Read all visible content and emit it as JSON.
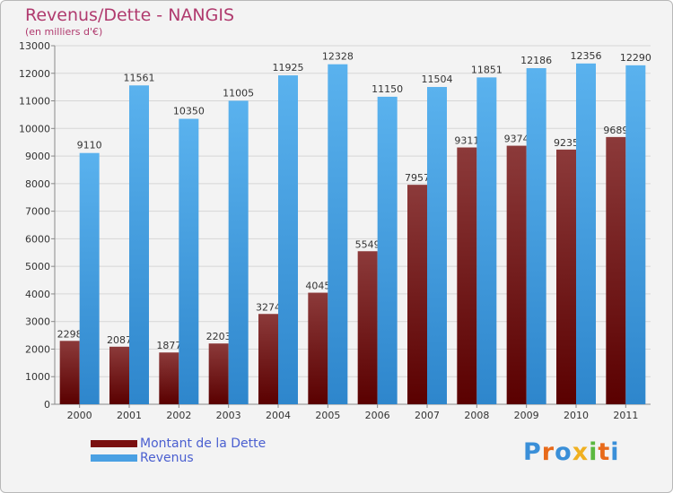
{
  "header": {
    "title": "Revenus/Dette - NANGIS",
    "subtitle": "(en milliers d'€)"
  },
  "legend": {
    "items": [
      {
        "label": "Montant de la Dette",
        "color": "#7a1010"
      },
      {
        "label": "Revenus",
        "color": "#4aa0e3"
      }
    ]
  },
  "logo": {
    "text": "Proxiti"
  },
  "colors": {
    "debt_top": "#8c3a3a",
    "debt_bottom": "#5a0000",
    "revenue_top": "#5ab2ee",
    "revenue_bottom": "#2e86cc",
    "title": "#b03a6e"
  },
  "chart_data": {
    "type": "bar",
    "categories": [
      "2000",
      "2001",
      "2002",
      "2003",
      "2004",
      "2005",
      "2006",
      "2007",
      "2008",
      "2009",
      "2010",
      "2011"
    ],
    "series": [
      {
        "name": "Montant de la Dette",
        "values": [
          2298,
          2087,
          1877,
          2203,
          3274,
          4045,
          5549,
          7957,
          9311,
          9374,
          9235,
          9689
        ]
      },
      {
        "name": "Revenus",
        "values": [
          9110,
          11561,
          10350,
          11005,
          11925,
          12328,
          11150,
          11504,
          11851,
          12186,
          12356,
          12290
        ]
      }
    ],
    "y_ticks": [
      "0",
      "1000",
      "2000",
      "3000",
      "4000",
      "5000",
      "6000",
      "7000",
      "8000",
      "9000",
      "10000",
      "11000",
      "12000",
      "13000"
    ],
    "ylim": [
      0,
      13000
    ],
    "grid": true
  }
}
